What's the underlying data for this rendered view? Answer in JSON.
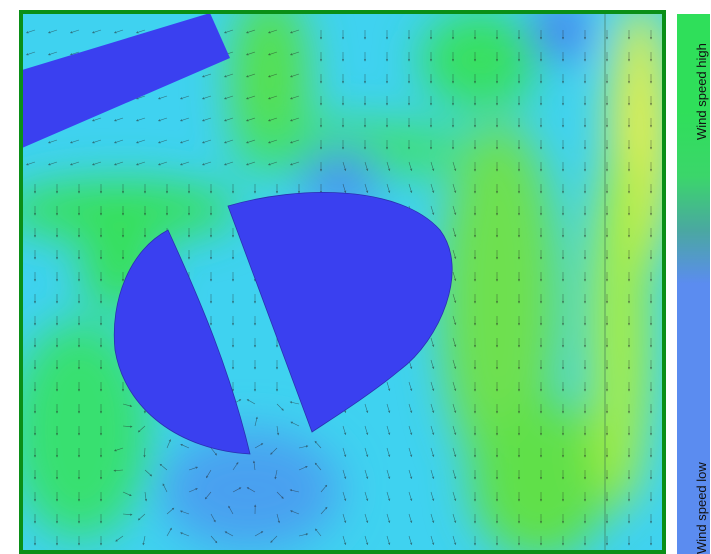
{
  "legend": {
    "high_label": "Wind speed high",
    "low_label": "Wind speed low"
  },
  "colors": {
    "frame": "#0a8f17",
    "obstacle": "#3a40f0",
    "field_low": "#3fd2f0",
    "field_mid": "#37e05a",
    "field_high": "#e8f044",
    "arrows": "#222222"
  }
}
